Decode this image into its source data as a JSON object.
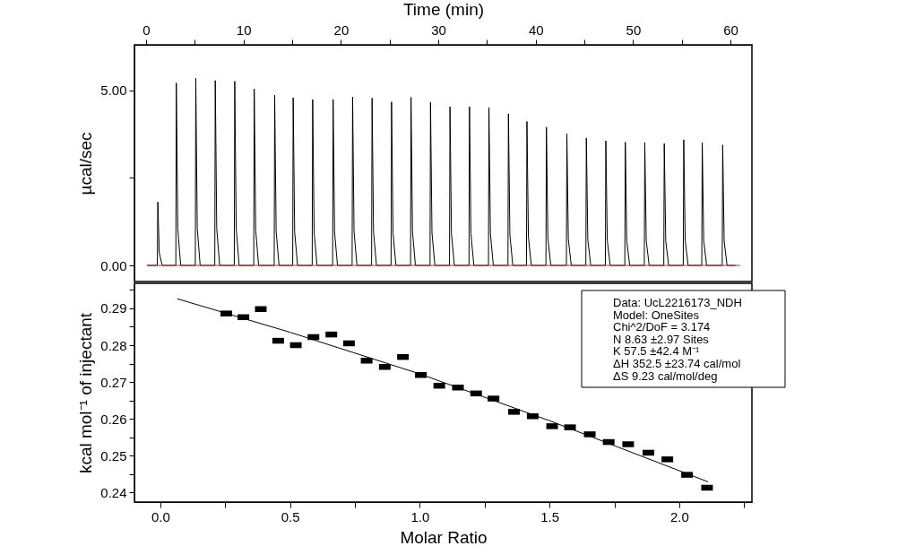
{
  "chart_data": [
    {
      "type": "line",
      "xlabel": "Time (min)",
      "ylabel": "µcal/sec",
      "xlim": [
        -1.2,
        62.2
      ],
      "ylim": [
        -0.46,
        6.3
      ],
      "xticks": [
        0,
        {
          "value": 5,
          "label": null
        },
        10,
        {
          "value": 15,
          "label": null
        },
        20,
        {
          "value": 25,
          "label": null
        },
        30,
        {
          "value": 35,
          "label": null
        },
        40,
        {
          "value": 45,
          "label": null
        },
        50,
        {
          "value": 55,
          "label": null
        },
        60
      ],
      "yticks": [
        {
          "value": 0,
          "label": "0.00"
        },
        {
          "value": 2.5,
          "label": null
        },
        {
          "value": 5,
          "label": "5.00"
        }
      ],
      "series": [
        {
          "color": "#000000",
          "x": [
            0.1,
            1.15,
            1.2,
            1.35,
            1.65,
            3.05,
            3.1,
            3.25,
            3.55,
            5.05,
            5.1,
            5.25,
            5.55,
            7.05,
            7.1,
            7.25,
            7.55,
            9.05,
            9.1,
            9.25,
            9.55,
            11.05,
            11.1,
            11.25,
            11.55,
            13.15,
            13.2,
            13.35,
            13.65,
            15.05,
            15.1,
            15.25,
            15.55,
            17.05,
            17.1,
            17.25,
            17.55,
            19.15,
            19.2,
            19.35,
            19.65,
            21.15,
            21.2,
            21.35,
            21.65,
            23.15,
            23.2,
            23.35,
            23.65,
            25.15,
            25.2,
            25.35,
            25.65,
            27.15,
            27.2,
            27.35,
            27.65,
            29.15,
            29.2,
            29.35,
            29.65,
            31.15,
            31.2,
            31.35,
            31.65,
            33.15,
            33.2,
            33.35,
            33.65,
            35.15,
            35.2,
            35.35,
            35.65,
            37.15,
            37.2,
            37.35,
            37.65,
            39.05,
            39.1,
            39.25,
            39.55,
            41.05,
            41.1,
            41.25,
            41.55,
            43.15,
            43.2,
            43.35,
            43.65,
            45.15,
            45.2,
            45.35,
            45.65,
            47.15,
            47.2,
            47.35,
            47.65,
            49.15,
            49.2,
            49.35,
            49.65,
            51.15,
            51.2,
            51.35,
            51.65,
            53.15,
            53.2,
            53.35,
            53.65,
            55.15,
            55.2,
            55.35,
            55.65,
            57.05,
            57.1,
            57.25,
            57.55,
            59.15,
            59.2,
            59.35,
            59.65,
            60.5
          ],
          "values": [
            0,
            0,
            1.81,
            0.36,
            0,
            0,
            5.21,
            1.04,
            0,
            0,
            5.34,
            1.07,
            0,
            0,
            5.28,
            1.06,
            0,
            0,
            5.26,
            1.05,
            0,
            0,
            5.04,
            1.01,
            0,
            0,
            4.86,
            0.97,
            0,
            0,
            4.79,
            0.96,
            0,
            0,
            4.74,
            0.95,
            0,
            0,
            4.74,
            0.95,
            0,
            0,
            4.81,
            0.96,
            0,
            0,
            4.78,
            0.96,
            0,
            0,
            4.67,
            0.93,
            0,
            0,
            4.8,
            0.96,
            0,
            0,
            4.66,
            0.93,
            0,
            0,
            4.53,
            0.91,
            0,
            0,
            4.53,
            0.91,
            0,
            0,
            4.51,
            0.9,
            0,
            0,
            4.33,
            0.87,
            0,
            0,
            4.11,
            0.82,
            0,
            0,
            3.95,
            0.79,
            0,
            0,
            3.76,
            0.75,
            0,
            0,
            3.64,
            0.73,
            0,
            0,
            3.56,
            0.71,
            0,
            0,
            3.52,
            0.7,
            0,
            0,
            3.51,
            0.7,
            0,
            0,
            3.48,
            0.7,
            0,
            0,
            3.59,
            0.72,
            0,
            0,
            3.51,
            0.7,
            0,
            0,
            3.44,
            0.69,
            0,
            0
          ]
        },
        {
          "color": "#c03030",
          "x": [
            0.1,
            61
          ],
          "values": [
            0,
            0
          ]
        }
      ]
    },
    {
      "type": "scatter",
      "xlabel": "Molar Ratio",
      "ylabel": "kcal mol⁻¹ of injectant",
      "xlim": [
        -0.1,
        2.28
      ],
      "ylim": [
        0.2374,
        0.2968
      ],
      "xticks": [
        {
          "value": 0,
          "label": "0.0"
        },
        {
          "value": 0.25,
          "label": null
        },
        {
          "value": 0.5,
          "label": "0.5"
        },
        {
          "value": 0.75,
          "label": null
        },
        {
          "value": 1,
          "label": "1.0"
        },
        {
          "value": 1.25,
          "label": null
        },
        {
          "value": 1.5,
          "label": "1.5"
        },
        {
          "value": 1.75,
          "label": null
        },
        {
          "value": 2,
          "label": "2.0"
        },
        {
          "value": 2.25,
          "label": null
        }
      ],
      "yticks": [
        0.24,
        {
          "value": 0.245,
          "label": null
        },
        0.25,
        {
          "value": 0.255,
          "label": null
        },
        0.26,
        {
          "value": 0.265,
          "label": null
        },
        0.27,
        {
          "value": 0.275,
          "label": null
        },
        0.28,
        {
          "value": 0.285,
          "label": null
        },
        0.29,
        {
          "value": 0.295,
          "label": null
        }
      ],
      "series": [
        {
          "marker": "square",
          "color": "#000000",
          "x": [
            0.254,
            0.32,
            0.387,
            0.454,
            0.522,
            0.59,
            0.659,
            0.727,
            0.795,
            0.865,
            0.935,
            1.004,
            1.075,
            1.147,
            1.217,
            1.284,
            1.363,
            1.435,
            1.51,
            1.579,
            1.655,
            1.728,
            1.803,
            1.881,
            1.954,
            2.03,
            2.107
          ],
          "values": [
            0.2886,
            0.2876,
            0.2898,
            0.2812,
            0.28,
            0.2822,
            0.2829,
            0.2805,
            0.2758,
            0.2741,
            0.2768,
            0.2719,
            0.269,
            0.2685,
            0.2669,
            0.2655,
            0.2619,
            0.2607,
            0.258,
            0.2577,
            0.2558,
            0.2537,
            0.2531,
            0.2508,
            0.249,
            0.2448,
            0.2413
          ]
        },
        {
          "type": "line",
          "color": "#000000",
          "x": [
            0.065,
            0.5,
            1.0,
            1.5,
            2.111
          ],
          "values": [
            0.2926,
            0.2835,
            0.2722,
            0.2595,
            0.2429
          ]
        }
      ],
      "annotations": [
        "Data: UcL2216173_NDH",
        "Model: OneSites",
        "Chi^2/DoF = 3.174",
        "N 8.63 ±2.97 Sites",
        "K 57.5 ±42.4 M⁻¹",
        "ΔH 352.5 ±23.74 cal/mol",
        "ΔS 9.23 cal/mol/deg"
      ]
    }
  ]
}
